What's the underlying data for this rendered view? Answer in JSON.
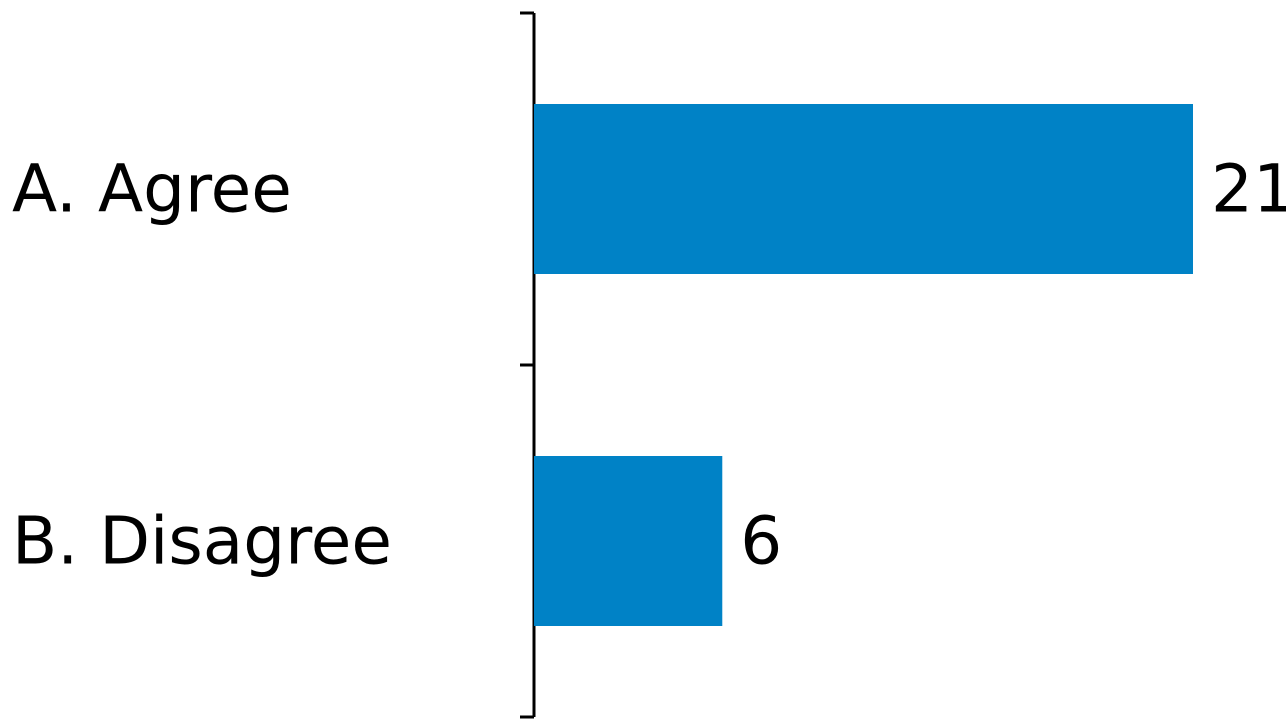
{
  "chart_data": {
    "type": "bar",
    "orientation": "horizontal",
    "categories": [
      "A. Agree",
      "B. Disagree"
    ],
    "values": [
      21,
      6
    ],
    "data_labels": [
      "21",
      "6"
    ],
    "title": "",
    "xlabel": "",
    "ylabel": "",
    "xlim": [
      0,
      21
    ],
    "grid": false,
    "legend": "none",
    "colors": {
      "bar": "#0082c6",
      "axis": "#000000",
      "text": "#000000"
    }
  }
}
